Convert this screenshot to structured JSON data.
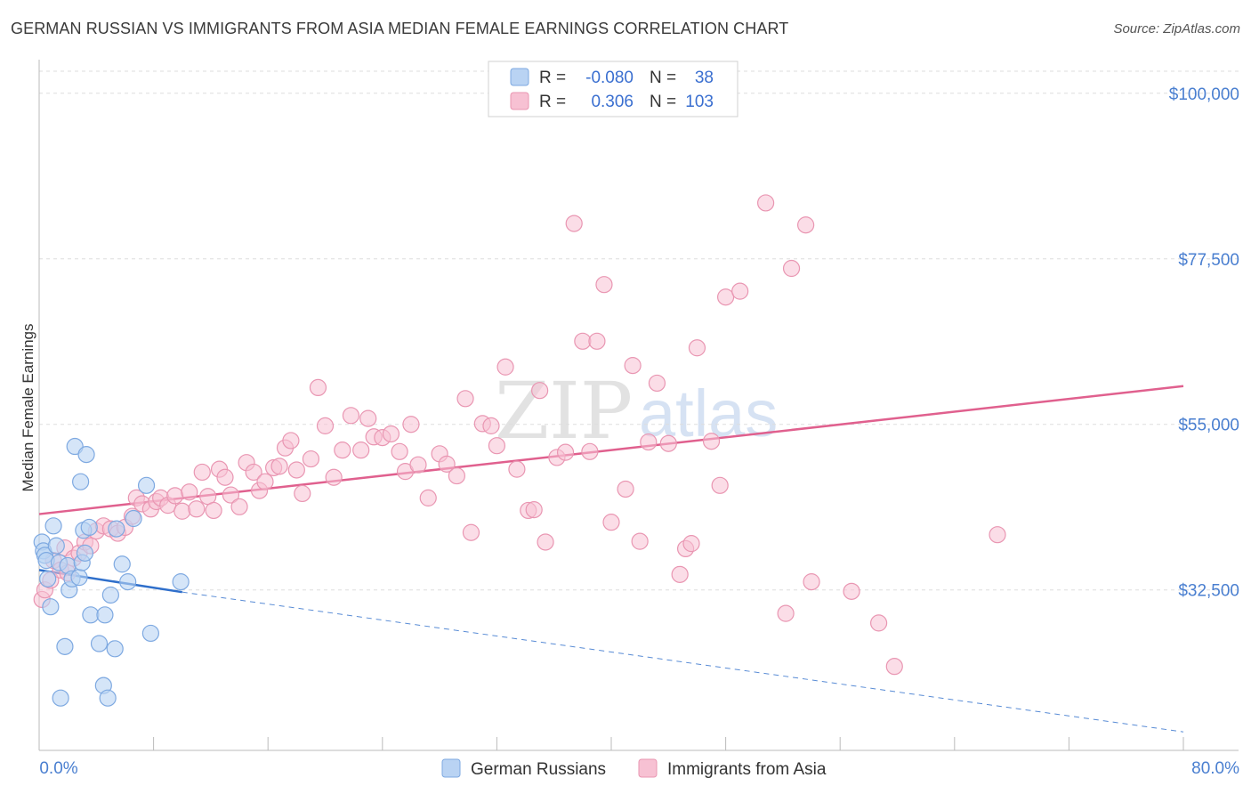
{
  "title": "GERMAN RUSSIAN VS IMMIGRANTS FROM ASIA MEDIAN FEMALE EARNINGS CORRELATION CHART",
  "source": "Source: ZipAtlas.com",
  "watermark": {
    "zip": "ZIP",
    "atlas": "atlas"
  },
  "colors": {
    "blue_fill": "#b9d3f3",
    "blue_stroke": "#7ea9e1",
    "blue_line": "#2f6fcb",
    "pink_fill": "#f7c1d3",
    "pink_stroke": "#e996b2",
    "pink_line": "#e0608e",
    "axis_text": "#4a7fd0",
    "grid": "#dddddd"
  },
  "chart_data": {
    "type": "scatter",
    "title": "GERMAN RUSSIAN VS IMMIGRANTS FROM ASIA MEDIAN FEMALE EARNINGS CORRELATION CHART",
    "xlabel": "",
    "ylabel": "Median Female Earnings",
    "xlim": [
      0,
      80
    ],
    "ylim": [
      12500,
      103000
    ],
    "x_tick_labels": [
      "0.0%",
      "80.0%"
    ],
    "y_ticks": [
      32500,
      55000,
      77500,
      100000
    ],
    "y_tick_labels": [
      "$32,500",
      "$55,000",
      "$77,500",
      "$100,000"
    ],
    "legend": [
      {
        "label": "R =",
        "r": "-0.080",
        "n_label": "N =",
        "n": "38"
      },
      {
        "label": "R =",
        "r": "0.306",
        "n_label": "N =",
        "n": "103"
      }
    ],
    "series": [
      {
        "name": "German Russians",
        "trend": {
          "x": [
            0,
            10
          ],
          "y": [
            35200,
            32200
          ],
          "dashed_to": [
            80,
            13200
          ]
        },
        "points": [
          [
            0.2,
            39000
          ],
          [
            0.3,
            37800
          ],
          [
            0.4,
            37200
          ],
          [
            0.5,
            36500
          ],
          [
            0.6,
            34000
          ],
          [
            0.8,
            30200
          ],
          [
            1.0,
            41200
          ],
          [
            1.2,
            38500
          ],
          [
            1.4,
            36200
          ],
          [
            1.5,
            17800
          ],
          [
            1.8,
            24800
          ],
          [
            2.0,
            35800
          ],
          [
            2.1,
            32500
          ],
          [
            2.3,
            34000
          ],
          [
            2.5,
            52000
          ],
          [
            2.8,
            34200
          ],
          [
            2.9,
            47200
          ],
          [
            3.0,
            36200
          ],
          [
            3.1,
            40600
          ],
          [
            3.2,
            37500
          ],
          [
            3.3,
            50900
          ],
          [
            3.5,
            41000
          ],
          [
            3.6,
            29100
          ],
          [
            4.2,
            25200
          ],
          [
            4.5,
            19500
          ],
          [
            4.6,
            29100
          ],
          [
            4.8,
            17800
          ],
          [
            5.0,
            31800
          ],
          [
            5.3,
            24500
          ],
          [
            5.4,
            40800
          ],
          [
            5.8,
            36000
          ],
          [
            6.2,
            33600
          ],
          [
            6.6,
            42200
          ],
          [
            7.5,
            46700
          ],
          [
            7.8,
            26600
          ],
          [
            9.9,
            33600
          ]
        ]
      },
      {
        "name": "Immigrants from Asia",
        "trend": {
          "x": [
            0,
            80
          ],
          "y": [
            42800,
            60200
          ]
        },
        "points": [
          [
            0.2,
            31200
          ],
          [
            0.4,
            32500
          ],
          [
            0.8,
            33800
          ],
          [
            1.0,
            36500
          ],
          [
            1.5,
            35200
          ],
          [
            1.8,
            38200
          ],
          [
            2.0,
            34800
          ],
          [
            2.4,
            36800
          ],
          [
            2.8,
            37500
          ],
          [
            3.2,
            39000
          ],
          [
            3.6,
            38500
          ],
          [
            4.0,
            40500
          ],
          [
            4.5,
            41200
          ],
          [
            5.0,
            40800
          ],
          [
            5.5,
            40200
          ],
          [
            6.0,
            41000
          ],
          [
            6.5,
            42500
          ],
          [
            6.8,
            45000
          ],
          [
            7.2,
            44200
          ],
          [
            7.8,
            43500
          ],
          [
            8.2,
            44500
          ],
          [
            8.5,
            45000
          ],
          [
            9.0,
            44000
          ],
          [
            9.5,
            45300
          ],
          [
            10.0,
            43200
          ],
          [
            10.5,
            45800
          ],
          [
            11.0,
            43500
          ],
          [
            11.4,
            48500
          ],
          [
            11.8,
            45200
          ],
          [
            12.2,
            43300
          ],
          [
            12.6,
            48900
          ],
          [
            13.0,
            47800
          ],
          [
            13.4,
            45400
          ],
          [
            14.0,
            43800
          ],
          [
            14.5,
            49800
          ],
          [
            15.0,
            48500
          ],
          [
            15.4,
            46000
          ],
          [
            15.8,
            47200
          ],
          [
            16.4,
            49100
          ],
          [
            16.8,
            49300
          ],
          [
            17.2,
            51800
          ],
          [
            17.6,
            52800
          ],
          [
            18.0,
            48800
          ],
          [
            18.4,
            45600
          ],
          [
            19.0,
            50300
          ],
          [
            19.5,
            60000
          ],
          [
            20.0,
            54800
          ],
          [
            20.6,
            47800
          ],
          [
            21.2,
            51500
          ],
          [
            21.8,
            56200
          ],
          [
            22.5,
            51500
          ],
          [
            23.0,
            55800
          ],
          [
            23.4,
            53300
          ],
          [
            24.0,
            53200
          ],
          [
            24.6,
            53700
          ],
          [
            25.2,
            51300
          ],
          [
            25.6,
            48600
          ],
          [
            26.0,
            55000
          ],
          [
            26.5,
            49500
          ],
          [
            27.2,
            45000
          ],
          [
            28.0,
            51000
          ],
          [
            28.5,
            49600
          ],
          [
            29.2,
            48000
          ],
          [
            29.8,
            58500
          ],
          [
            30.2,
            40300
          ],
          [
            31.0,
            55100
          ],
          [
            31.6,
            54800
          ],
          [
            32.0,
            52100
          ],
          [
            32.6,
            62800
          ],
          [
            33.4,
            48900
          ],
          [
            34.2,
            43300
          ],
          [
            34.6,
            43400
          ],
          [
            35.0,
            59600
          ],
          [
            35.4,
            39000
          ],
          [
            36.2,
            50500
          ],
          [
            36.8,
            51200
          ],
          [
            37.4,
            82300
          ],
          [
            38.0,
            66300
          ],
          [
            38.5,
            51300
          ],
          [
            39.0,
            66300
          ],
          [
            39.5,
            74000
          ],
          [
            40.0,
            41700
          ],
          [
            41.0,
            46200
          ],
          [
            41.5,
            63000
          ],
          [
            42.0,
            39100
          ],
          [
            42.6,
            52600
          ],
          [
            43.2,
            60600
          ],
          [
            44.0,
            52400
          ],
          [
            44.8,
            34600
          ],
          [
            45.2,
            38100
          ],
          [
            45.6,
            38800
          ],
          [
            46.0,
            65400
          ],
          [
            47.0,
            52700
          ],
          [
            47.6,
            46700
          ],
          [
            48.0,
            72300
          ],
          [
            49.0,
            73100
          ],
          [
            50.8,
            85100
          ],
          [
            52.2,
            29300
          ],
          [
            52.6,
            76200
          ],
          [
            53.6,
            82100
          ],
          [
            54.0,
            33600
          ],
          [
            56.8,
            32300
          ],
          [
            58.7,
            28000
          ],
          [
            59.8,
            22100
          ],
          [
            67.0,
            40000
          ]
        ]
      }
    ]
  }
}
